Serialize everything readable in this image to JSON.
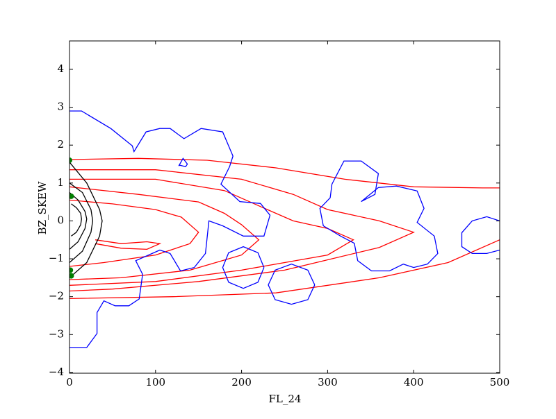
{
  "chart_data": {
    "type": "contour",
    "x_label": "FL_24",
    "y_label": "BZ_SKEW",
    "xlim": [
      0,
      500
    ],
    "ylim": [
      -4.02,
      4.75
    ],
    "xticks": [
      0,
      100,
      200,
      300,
      400,
      500
    ],
    "yticks": [
      {
        "value": -4,
        "label": "−4"
      },
      {
        "value": -3,
        "label": "−3"
      },
      {
        "value": -2,
        "label": "−2"
      },
      {
        "value": -1,
        "label": "−1"
      },
      0,
      1,
      2,
      3,
      4
    ],
    "series": [
      {
        "color": "#ff0000",
        "x": [
          0,
          80,
          160,
          240,
          320,
          400,
          480,
          500
        ],
        "y": [
          1.62,
          1.65,
          1.6,
          1.4,
          1.1,
          0.9,
          0.87,
          0.87
        ]
      },
      {
        "color": "#ff0000",
        "x": [
          0,
          120,
          240,
          360,
          440,
          500
        ],
        "y": [
          -2.05,
          -2.0,
          -1.9,
          -1.5,
          -1.1,
          -0.5
        ]
      },
      {
        "color": "#ff0000",
        "x": [
          0,
          100,
          200,
          260,
          300,
          360,
          400,
          360,
          250,
          150,
          50,
          0
        ],
        "y": [
          1.35,
          1.35,
          1.1,
          0.7,
          0.3,
          0.0,
          -0.3,
          -0.7,
          -1.3,
          -1.6,
          -1.8,
          -1.85
        ]
      },
      {
        "color": "#ff0000",
        "x": [
          0,
          100,
          180,
          230,
          260,
          300,
          330,
          300,
          200,
          100,
          0
        ],
        "y": [
          1.1,
          1.1,
          0.8,
          0.3,
          0.0,
          -0.2,
          -0.5,
          -0.9,
          -1.3,
          -1.6,
          -1.7
        ]
      },
      {
        "color": "#ff0000",
        "x": [
          0,
          80,
          150,
          180,
          200,
          220,
          200,
          140,
          60,
          0
        ],
        "y": [
          0.9,
          0.7,
          0.5,
          0.2,
          -0.1,
          -0.5,
          -0.9,
          -1.3,
          -1.5,
          -1.55
        ]
      },
      {
        "color": "#ff0000",
        "x": [
          0,
          50,
          100,
          130,
          150,
          140,
          100,
          40,
          0
        ],
        "y": [
          0.55,
          0.45,
          0.3,
          0.1,
          -0.3,
          -0.6,
          -0.9,
          -1.1,
          -1.2
        ]
      },
      {
        "color": "#ff0000",
        "x": [
          30,
          60,
          90,
          105,
          90,
          60,
          30
        ],
        "y": [
          -0.5,
          -0.6,
          -0.55,
          -0.6,
          -0.75,
          -0.72,
          -0.6
        ]
      },
      {
        "color": "#000000",
        "x": [
          0,
          20,
          35,
          38,
          35,
          20,
          0
        ],
        "y": [
          1.55,
          1.0,
          0.3,
          0.0,
          -0.4,
          -1.1,
          -1.5
        ]
      },
      {
        "color": "#000000",
        "x": [
          0,
          15,
          25,
          27,
          25,
          15,
          0
        ],
        "y": [
          1.0,
          0.75,
          0.3,
          0.0,
          -0.3,
          -0.8,
          -1.1
        ]
      },
      {
        "color": "#000000",
        "x": [
          0,
          10,
          18,
          20,
          18,
          10,
          0
        ],
        "y": [
          0.75,
          0.55,
          0.25,
          0.05,
          -0.2,
          -0.55,
          -0.75
        ]
      },
      {
        "color": "#000000",
        "x": [
          2,
          8,
          13,
          14,
          13,
          8,
          2
        ],
        "y": [
          0.45,
          0.35,
          0.2,
          0.05,
          -0.1,
          -0.3,
          -0.4
        ]
      },
      {
        "color": "#0000ff",
        "x": [
          0,
          14,
          48,
          73,
          75,
          89,
          105,
          117,
          133,
          153,
          178,
          190,
          186,
          176,
          198,
          222,
          233,
          226,
          202,
          178,
          162,
          158,
          145,
          129,
          117,
          105,
          77,
          85,
          81,
          69,
          53,
          40,
          32,
          32,
          20,
          0
        ],
        "y": [
          2.9,
          2.9,
          2.44,
          1.98,
          1.83,
          2.35,
          2.44,
          2.44,
          2.17,
          2.44,
          2.35,
          1.71,
          1.43,
          0.97,
          0.51,
          0.46,
          0.15,
          -0.4,
          -0.4,
          -0.13,
          0.0,
          -0.86,
          -1.23,
          -1.32,
          -0.86,
          -0.77,
          -1.05,
          -1.41,
          -2.06,
          -2.24,
          -2.24,
          -2.11,
          -2.42,
          -2.97,
          -3.34,
          -3.34
        ]
      },
      {
        "color": "#0000ff",
        "x": [
          127,
          132,
          137,
          135,
          128,
          127
        ],
        "y": [
          1.45,
          1.65,
          1.5,
          1.43,
          1.47,
          1.45
        ]
      },
      {
        "color": "#0000ff",
        "x": [
          226,
          219,
          202,
          185,
          178,
          185,
          202,
          219,
          226
        ],
        "y": [
          -1.23,
          -0.84,
          -0.68,
          -0.84,
          -1.23,
          -1.62,
          -1.78,
          -1.62,
          -1.23
        ]
      },
      {
        "color": "#0000ff",
        "x": [
          285,
          277,
          258,
          239,
          231,
          239,
          258,
          277,
          285
        ],
        "y": [
          -1.69,
          -1.3,
          -1.14,
          -1.3,
          -1.69,
          -2.08,
          -2.2,
          -2.08,
          -1.69
        ]
      },
      {
        "color": "#0000ff",
        "x": [
          305,
          319,
          339,
          359,
          355,
          339,
          359,
          380,
          404,
          412,
          404,
          424,
          428,
          416,
          400,
          388,
          372,
          351,
          335,
          331,
          315,
          295,
          291,
          303,
          305
        ],
        "y": [
          0.97,
          1.58,
          1.58,
          1.25,
          0.7,
          0.51,
          0.88,
          0.92,
          0.79,
          0.33,
          -0.04,
          -0.4,
          -0.86,
          -1.14,
          -1.23,
          -1.14,
          -1.32,
          -1.32,
          -1.05,
          -0.59,
          -0.4,
          -0.13,
          0.33,
          0.61,
          0.97
        ]
      },
      {
        "color": "#0000ff",
        "x": [
          500,
          485,
          468,
          456,
          456,
          468,
          485,
          500
        ],
        "y": [
          0.0,
          0.11,
          0.0,
          -0.31,
          -0.68,
          -0.86,
          -0.86,
          -0.77
        ]
      }
    ],
    "points": {
      "color": "#007f00",
      "x": [
        0,
        2,
        1,
        2
      ],
      "y": [
        1.6,
        0.65,
        -1.3,
        -1.45
      ]
    }
  }
}
